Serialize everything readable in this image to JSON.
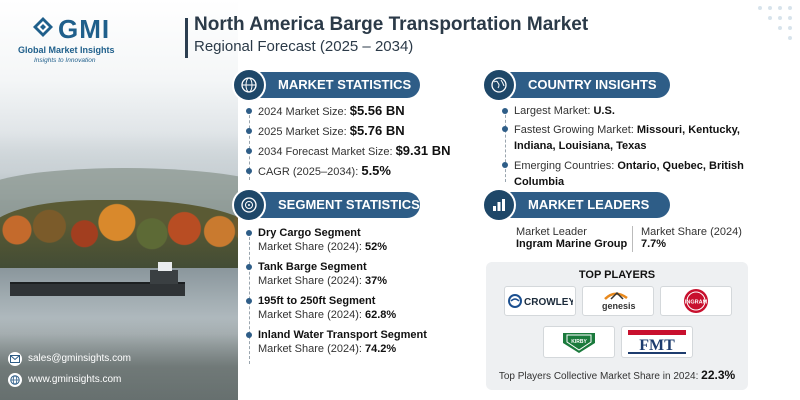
{
  "header": {
    "logo_text": "GMI",
    "logo_sub": "Global Market Insights",
    "logo_tag": "Insights to Innovation",
    "title": "North America Barge Transportation Market",
    "subtitle": "Regional Forecast (2025 – 2034)"
  },
  "market_statistics": {
    "heading": "MARKET STATISTICS",
    "items": [
      {
        "label": "2024 Market Size: ",
        "value": "$5.56 BN"
      },
      {
        "label": "2025 Market Size: ",
        "value": "$5.76 BN"
      },
      {
        "label": "2034 Forecast Market Size: ",
        "value": "$9.31 BN"
      },
      {
        "label": "CAGR (2025–2034): ",
        "value": "5.5%"
      }
    ]
  },
  "country_insights": {
    "heading": "COUNTRY INSIGHTS",
    "largest_label": "Largest Market: ",
    "largest_value": "U.S.",
    "fastest_label": "Fastest Growing Market: ",
    "fastest_value": "Missouri, Kentucky, Indiana, Louisiana, Texas",
    "emerging_label": "Emerging Countries: ",
    "emerging_value": "Ontario, Quebec, British Columbia"
  },
  "segment_statistics": {
    "heading": "SEGMENT STATISTICS",
    "items": [
      {
        "name": "Dry Cargo Segment",
        "label": "Market Share (2024): ",
        "value": "52%"
      },
      {
        "name": "Tank Barge Segment",
        "label": "Market Share (2024): ",
        "value": "37%"
      },
      {
        "name": "195ft to 250ft Segment",
        "label": "Market Share (2024): ",
        "value": "62.8%"
      },
      {
        "name": "Inland Water Transport Segment",
        "label": "Market Share (2024): ",
        "value": "74.2%"
      }
    ]
  },
  "market_leaders": {
    "heading": "MARKET LEADERS",
    "leader_label": "Market Leader",
    "leader_value": "Ingram Marine Group",
    "share_label": "Market Share (2024)",
    "share_value": "7.7%"
  },
  "top_players": {
    "heading": "TOP PLAYERS",
    "logos": [
      "CROWLEY",
      "genesis",
      "INGRAM",
      "KIRBY",
      "FMT"
    ],
    "foot_label": "Top Players Collective Market Share in 2024: ",
    "foot_value": "22.3%"
  },
  "contact": {
    "email": "sales@gminsights.com",
    "website": "www.gminsights.com"
  },
  "colors": {
    "accent": "#2e5d87",
    "accent_dark": "#1e4768",
    "crowley_blue": "#1b4f8f",
    "ingram_red": "#c8102e",
    "kirby_green": "#1a7a3c",
    "fmt_navy": "#1d3c6e",
    "genesis_orange": "#e8891d"
  }
}
